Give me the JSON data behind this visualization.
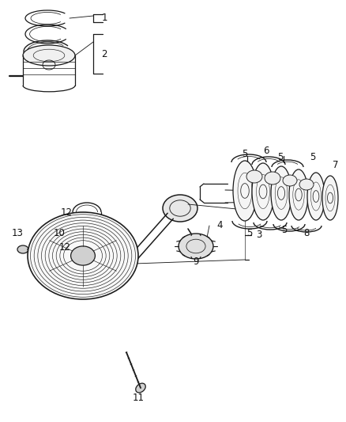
{
  "bg_color": "#ffffff",
  "line_color": "#1a1a1a",
  "fig_width": 4.38,
  "fig_height": 5.33,
  "dpi": 100,
  "label_fontsize": 8.5,
  "lw": 0.9
}
